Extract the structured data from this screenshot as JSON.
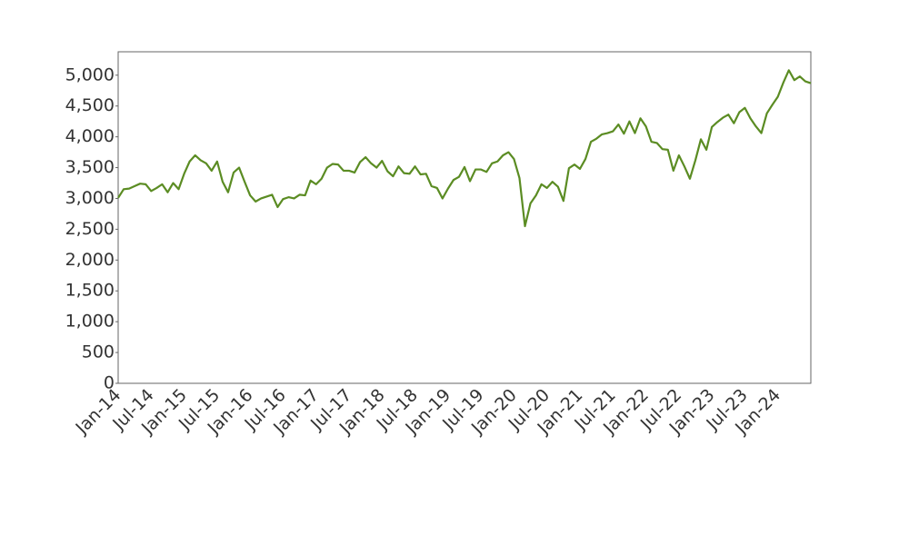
{
  "chart_data": {
    "type": "line",
    "color": "#5b8c23",
    "categories": [
      "Jan-14",
      null,
      null,
      null,
      null,
      null,
      "Jul-14",
      null,
      null,
      null,
      null,
      null,
      "Jan-15",
      null,
      null,
      null,
      null,
      null,
      "Jul-15",
      null,
      null,
      null,
      null,
      null,
      "Jan-16",
      null,
      null,
      null,
      null,
      null,
      "Jul-16",
      null,
      null,
      null,
      null,
      null,
      "Jan-17",
      null,
      null,
      null,
      null,
      null,
      "Jul-17",
      null,
      null,
      null,
      null,
      null,
      "Jan-18",
      null,
      null,
      null,
      null,
      null,
      "Jul-18",
      null,
      null,
      null,
      null,
      null,
      "Jan-19",
      null,
      null,
      null,
      null,
      null,
      "Jul-19",
      null,
      null,
      null,
      null,
      null,
      "Jan-20",
      null,
      null,
      null,
      null,
      null,
      "Jul-20",
      null,
      null,
      null,
      null,
      null,
      "Jan-21",
      null,
      null,
      null,
      null,
      null,
      "Jul-21",
      null,
      null,
      null,
      null,
      null,
      "Jan-22",
      null,
      null,
      null,
      null,
      null,
      "Jul-22",
      null,
      null,
      null,
      null,
      null,
      "Jan-23",
      null,
      null,
      null,
      null,
      null,
      "Jul-23",
      null,
      null,
      null,
      null,
      null,
      "Jan-24",
      null,
      null,
      null,
      null,
      null,
      null
    ],
    "values": [
      3010,
      3150,
      3160,
      3200,
      3240,
      3230,
      3120,
      3170,
      3230,
      3100,
      3250,
      3150,
      3400,
      3600,
      3700,
      3620,
      3570,
      3450,
      3600,
      3270,
      3100,
      3420,
      3500,
      3270,
      3050,
      2950,
      3000,
      3030,
      3060,
      2860,
      2990,
      3020,
      3000,
      3060,
      3050,
      3290,
      3230,
      3320,
      3500,
      3560,
      3550,
      3450,
      3450,
      3420,
      3590,
      3670,
      3570,
      3500,
      3610,
      3440,
      3360,
      3520,
      3410,
      3400,
      3520,
      3390,
      3400,
      3200,
      3170,
      3000,
      3160,
      3300,
      3350,
      3510,
      3280,
      3470,
      3470,
      3430,
      3570,
      3600,
      3700,
      3750,
      3640,
      3330,
      2550,
      2920,
      3050,
      3230,
      3170,
      3270,
      3190,
      2960,
      3490,
      3550,
      3480,
      3640,
      3920,
      3970,
      4040,
      4060,
      4090,
      4200,
      4050,
      4250,
      4060,
      4300,
      4170,
      3920,
      3900,
      3800,
      3790,
      3450,
      3700,
      3520,
      3320,
      3620,
      3960,
      3790,
      4160,
      4240,
      4310,
      4360,
      4220,
      4400,
      4470,
      4300,
      4170,
      4060,
      4380,
      4520,
      4650,
      4880,
      5080,
      4920,
      4980,
      4900,
      4870
    ],
    "ylim": [
      0,
      5380
    ],
    "yticks": [
      0,
      500,
      {
        "value": 1000,
        "label": "1,000"
      },
      {
        "value": 1500,
        "label": "1,500"
      },
      {
        "value": 2000,
        "label": "2,000"
      },
      {
        "value": 2500,
        "label": "2,500"
      },
      {
        "value": 3000,
        "label": "3,000"
      },
      {
        "value": 3500,
        "label": "3,500"
      },
      {
        "value": 4000,
        "label": "4,000"
      },
      {
        "value": 4500,
        "label": "4,500"
      },
      {
        "value": 5000,
        "label": "5,000"
      }
    ]
  }
}
